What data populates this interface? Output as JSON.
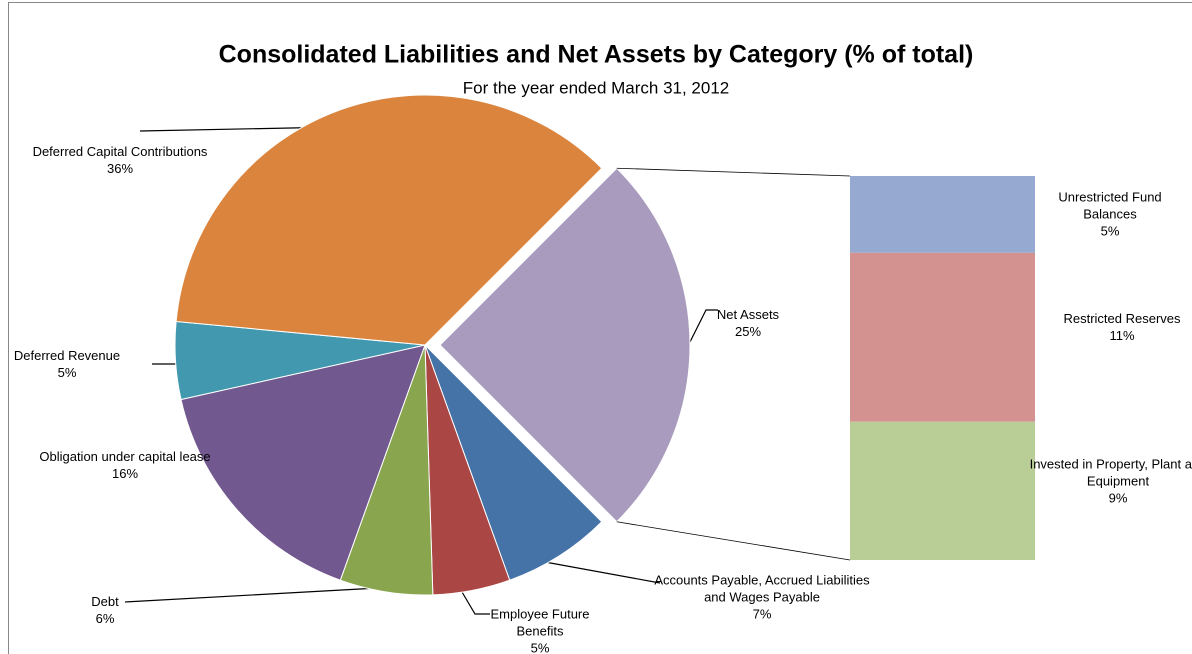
{
  "chart_data": {
    "type": "pie-of-bar",
    "title": "Consolidated Liabilities and Net Assets by Category (% of total)",
    "subtitle": "For the year ended March 31, 2012",
    "categories": [
      "Net Assets",
      "Accounts Payable, Accrued Liabilities and Wages Payable",
      "Employee Future Benefits",
      "Debt",
      "Obligation under capital lease",
      "Deferred Revenue",
      "Deferred Capital Contributions"
    ],
    "values": [
      25,
      7,
      5,
      6,
      16,
      5,
      36
    ],
    "value_labels": [
      "25%",
      "7%",
      "5%",
      "6%",
      "16%",
      "5%",
      "36%"
    ],
    "colors": [
      "#a99bbd",
      "#4573a7",
      "#aa4644",
      "#89a54e",
      "#71588f",
      "#4298af",
      "#db843d"
    ],
    "bar": {
      "categories": [
        "Unrestricted Fund Balances",
        "Restricted Reserves",
        "Invested in Property, Plant and Equipment"
      ],
      "values": [
        5,
        11,
        9
      ],
      "value_labels": [
        "5%",
        "11%",
        "9%"
      ],
      "colors": [
        "#95a9d1",
        "#d39190",
        "#b9cd96"
      ]
    }
  }
}
